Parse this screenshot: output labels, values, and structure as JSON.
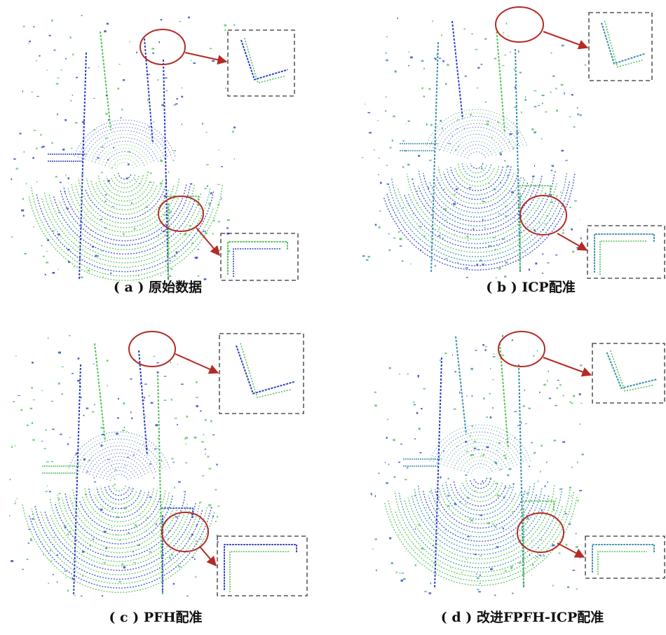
{
  "figure": {
    "panels": [
      {
        "caption": "( a ) 原始数据"
      },
      {
        "caption": "( b ) ICP配准"
      },
      {
        "caption": "( c ) PFH配准"
      },
      {
        "caption": "( d ) 改进FPFH-ICP配准"
      }
    ]
  }
}
